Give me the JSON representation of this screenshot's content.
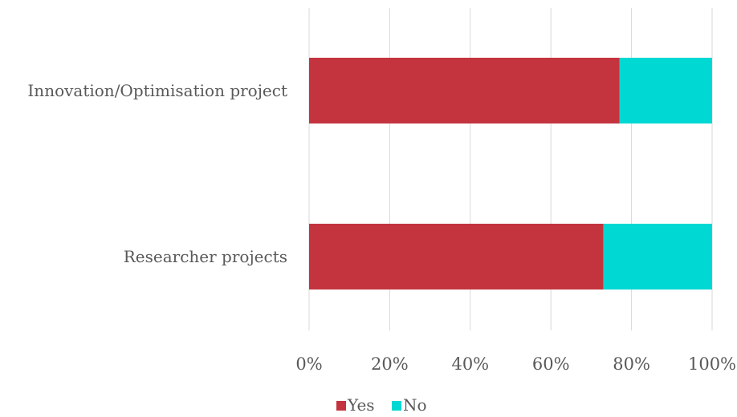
{
  "chart_data": {
    "type": "bar",
    "orientation": "horizontal",
    "stacked": true,
    "percent_stacked": true,
    "categories": [
      "Innovation/Optimisation project",
      "Researcher projects"
    ],
    "series": [
      {
        "name": "Yes",
        "values": [
          77,
          73
        ],
        "color": "#c3343e"
      },
      {
        "name": "No",
        "values": [
          23,
          27
        ],
        "color": "#00d8d4"
      }
    ],
    "xlim": [
      0,
      100
    ],
    "xticks": [
      0,
      20,
      40,
      60,
      80,
      100
    ],
    "xtick_labels": [
      "0%",
      "20%",
      "40%",
      "60%",
      "80%",
      "100%"
    ],
    "grid": "vertical",
    "legend_position": "bottom"
  }
}
